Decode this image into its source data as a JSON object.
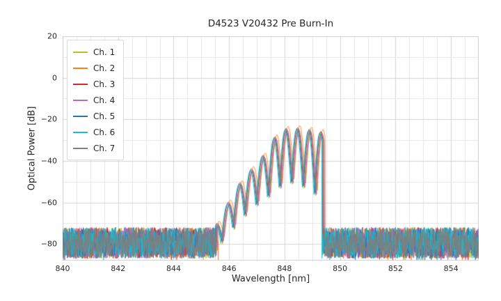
{
  "chart_data": {
    "type": "line",
    "title": "D4523 V20432 Pre Burn-In",
    "xlabel": "Wavelength [nm]",
    "ylabel": "Optical Power [dB]",
    "xlim": [
      840,
      855
    ],
    "ylim": [
      -88,
      20
    ],
    "xticks": {
      "values": [
        840,
        842,
        844,
        846,
        848,
        850,
        852,
        854
      ],
      "labels": [
        "840",
        "842",
        "844",
        "846",
        "848",
        "850",
        "852",
        "854"
      ]
    },
    "yticks": {
      "values": [
        20,
        0,
        -20,
        -40,
        -60,
        -80
      ],
      "labels": [
        "20",
        "0",
        "−20",
        "−40",
        "−60",
        "−80"
      ]
    },
    "grid": {
      "on": true,
      "x_step": 0.5,
      "y_step": 10,
      "minor_color": "#e6e6e6",
      "major_color": "#d4d4d4",
      "frame_color": "#cfcfcf"
    },
    "legend_position": "upper-left",
    "series": [
      {
        "name": "Ch. 1",
        "color": "#bcbd22",
        "x_shift": 0.0,
        "y_shift": -1.0,
        "seed": 101
      },
      {
        "name": "Ch. 2",
        "color": "#ff7f0e",
        "x_shift": 0.06,
        "y_shift": 1.5,
        "seed": 202
      },
      {
        "name": "Ch. 3",
        "color": "#d62728",
        "x_shift": -0.02,
        "y_shift": 0.5,
        "seed": 303
      },
      {
        "name": "Ch. 4",
        "color": "#ba68c8",
        "x_shift": 0.03,
        "y_shift": -0.5,
        "seed": 404
      },
      {
        "name": "Ch. 5",
        "color": "#1f77b4",
        "x_shift": -0.04,
        "y_shift": 0.0,
        "seed": 505
      },
      {
        "name": "Ch. 6",
        "color": "#17becf",
        "x_shift": -0.06,
        "y_shift": -0.5,
        "seed": 606
      },
      {
        "name": "Ch. 7",
        "color": "#7f7f7f",
        "x_shift": 0.01,
        "y_shift": 0.0,
        "seed": 707
      }
    ],
    "signal": {
      "band": [
        845.55,
        849.4
      ],
      "ripple_period": 0.42,
      "notch_sharpness": 0.5,
      "upper_envelope": [
        [
          845.55,
          -71
        ],
        [
          846.0,
          -60
        ],
        [
          846.45,
          -50
        ],
        [
          846.9,
          -43
        ],
        [
          847.35,
          -36
        ],
        [
          847.7,
          -28
        ],
        [
          848.0,
          -25
        ],
        [
          848.4,
          -24.3
        ],
        [
          848.8,
          -25.5
        ],
        [
          849.15,
          -24.8
        ],
        [
          849.4,
          -27
        ]
      ],
      "lower_envelope": [
        [
          845.55,
          -83
        ],
        [
          846.0,
          -75
        ],
        [
          846.45,
          -68
        ],
        [
          846.9,
          -62
        ],
        [
          847.35,
          -58
        ],
        [
          847.7,
          -54
        ],
        [
          848.0,
          -51
        ],
        [
          848.4,
          -50
        ],
        [
          848.8,
          -53
        ],
        [
          849.15,
          -56
        ],
        [
          849.4,
          -52
        ]
      ]
    },
    "noise": {
      "top": -72,
      "spread": 15,
      "spike_chance": 0.02,
      "spike_depth": 6
    }
  }
}
